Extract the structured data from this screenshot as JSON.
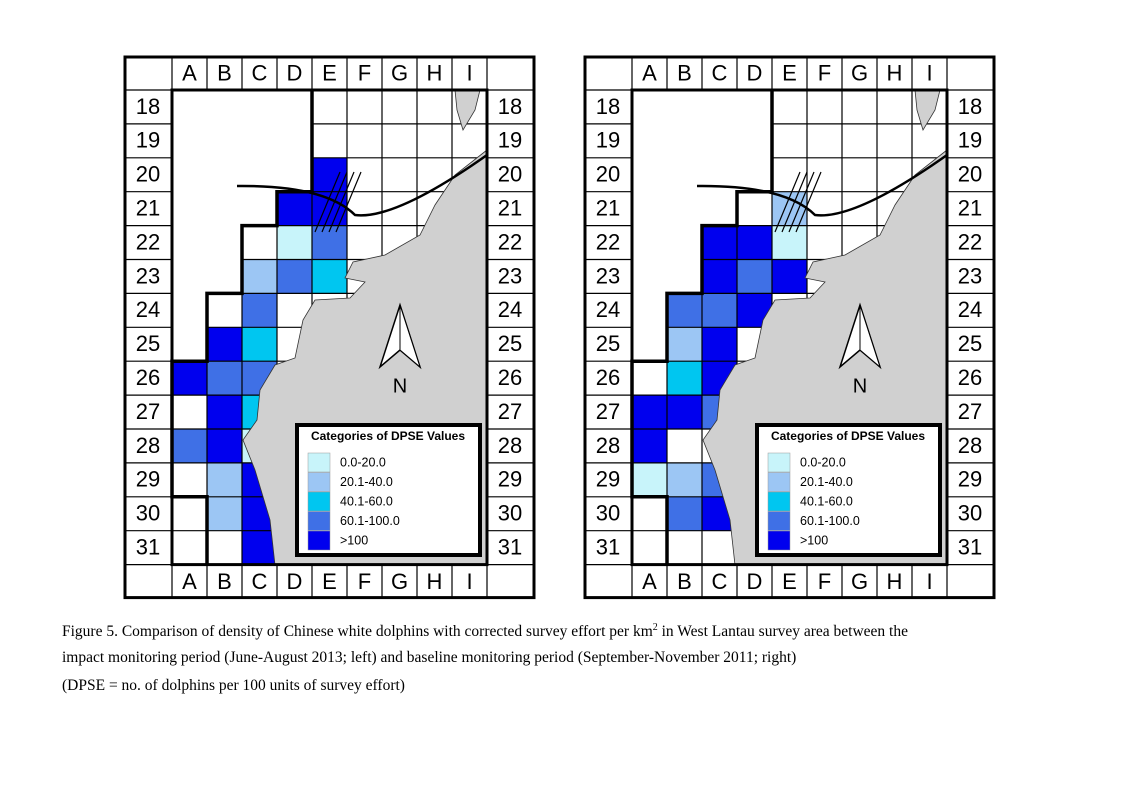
{
  "columns": [
    "A",
    "B",
    "C",
    "D",
    "E",
    "F",
    "G",
    "H",
    "I"
  ],
  "rows": [
    18,
    19,
    20,
    21,
    22,
    23,
    24,
    25,
    26,
    27,
    28,
    29,
    30,
    31
  ],
  "north": "N",
  "legend": {
    "title": "Categories of DPSE Values",
    "categories": [
      {
        "label": "0.0-20.0",
        "color": "#c8f4fa"
      },
      {
        "label": "20.1-40.0",
        "color": "#9cc6f4"
      },
      {
        "label": "40.1-60.0",
        "color": "#00c6f0"
      },
      {
        "label": "60.1-100.0",
        "color": "#3f70e6"
      },
      {
        "label": ">100",
        "color": "#0000ee"
      }
    ]
  },
  "maps": [
    {
      "cells": [
        [
          2,
          4,
          4
        ],
        [
          3,
          3,
          4
        ],
        [
          3,
          4,
          4
        ],
        [
          4,
          3,
          0
        ],
        [
          4,
          4,
          3
        ],
        [
          5,
          2,
          1
        ],
        [
          5,
          3,
          3
        ],
        [
          5,
          4,
          2
        ],
        [
          6,
          2,
          3
        ],
        [
          7,
          1,
          4
        ],
        [
          7,
          2,
          2
        ],
        [
          8,
          0,
          4
        ],
        [
          8,
          1,
          3
        ],
        [
          8,
          2,
          3
        ],
        [
          9,
          1,
          4
        ],
        [
          9,
          2,
          2
        ],
        [
          10,
          0,
          3
        ],
        [
          10,
          1,
          4
        ],
        [
          10,
          2,
          0
        ],
        [
          11,
          1,
          1
        ],
        [
          11,
          2,
          4
        ],
        [
          12,
          1,
          1
        ],
        [
          12,
          2,
          4
        ],
        [
          13,
          2,
          4
        ]
      ]
    },
    {
      "cells": [
        [
          3,
          4,
          1
        ],
        [
          4,
          2,
          4
        ],
        [
          4,
          3,
          4
        ],
        [
          4,
          4,
          0
        ],
        [
          5,
          2,
          4
        ],
        [
          5,
          3,
          3
        ],
        [
          5,
          4,
          4
        ],
        [
          6,
          1,
          3
        ],
        [
          6,
          2,
          3
        ],
        [
          6,
          3,
          4
        ],
        [
          7,
          1,
          1
        ],
        [
          7,
          2,
          4
        ],
        [
          8,
          1,
          2
        ],
        [
          8,
          2,
          4
        ],
        [
          9,
          0,
          4
        ],
        [
          9,
          1,
          4
        ],
        [
          9,
          2,
          3
        ],
        [
          10,
          0,
          4
        ],
        [
          11,
          0,
          0
        ],
        [
          11,
          1,
          1
        ],
        [
          11,
          2,
          3
        ],
        [
          12,
          1,
          3
        ],
        [
          12,
          2,
          4
        ]
      ]
    }
  ],
  "caption": {
    "line1_before": "Figure 5.  Comparison of density of Chinese white dolphins with corrected survey effort per km",
    "superscript": "2",
    "line1_after": " in West Lantau survey area between the",
    "line2": "impact monitoring period (June-August 2013; left) and baseline monitoring period (September-November 2011; right)",
    "line3": "(DPSE = no. of dolphins per 100 units of survey effort)"
  }
}
